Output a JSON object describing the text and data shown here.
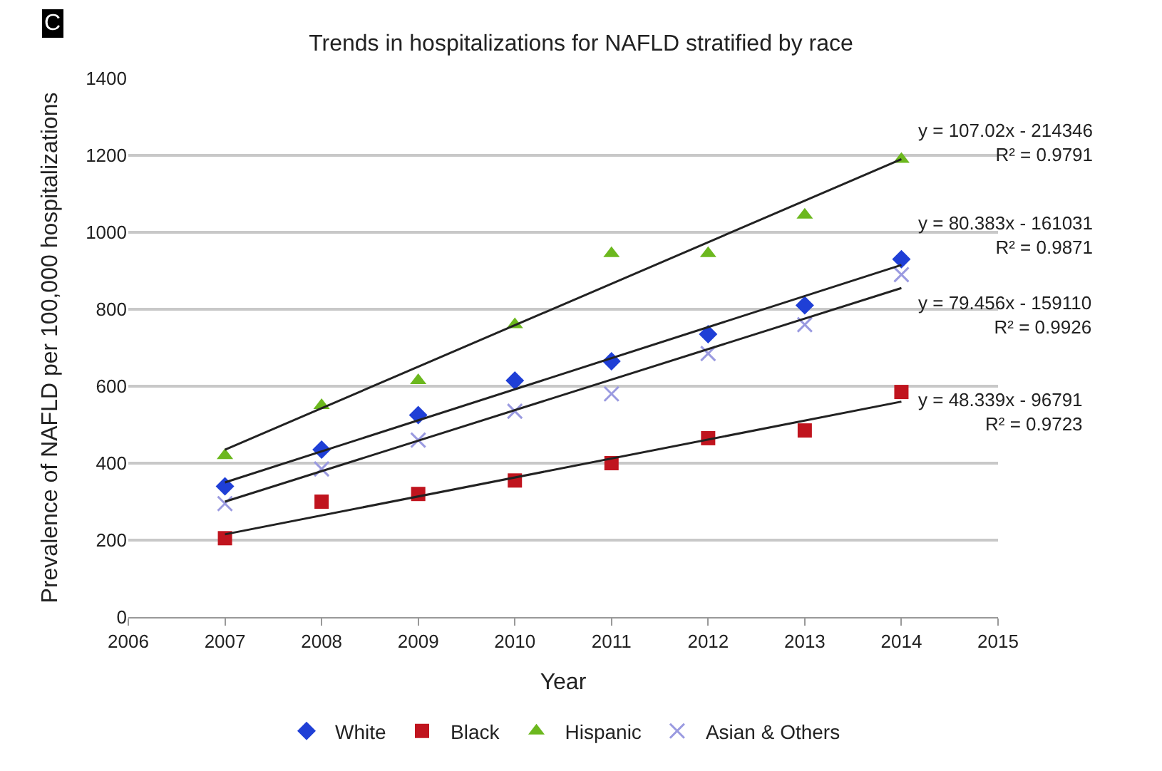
{
  "chart_data": {
    "type": "scatter",
    "title": "Trends in hospitalizations for NAFLD stratified by race",
    "xlabel": "Year",
    "ylabel": "Prevalence of NAFLD per 100,000 hospitalizations",
    "x": [
      2007,
      2008,
      2009,
      2010,
      2011,
      2012,
      2013,
      2014
    ],
    "series": [
      {
        "name": "White",
        "color": "#1f3fd6",
        "marker": "diamond",
        "values": [
          340,
          435,
          525,
          615,
          665,
          735,
          810,
          930
        ]
      },
      {
        "name": "Black",
        "color": "#c0141e",
        "marker": "square",
        "values": [
          205,
          300,
          320,
          355,
          400,
          465,
          485,
          585
        ]
      },
      {
        "name": "Hispanic",
        "color": "#6cb81e",
        "marker": "triangle",
        "values": [
          420,
          550,
          615,
          760,
          945,
          945,
          1045,
          1190
        ]
      },
      {
        "name": "Asian & Others",
        "color": "#9a9ae0",
        "marker": "cross",
        "values": [
          295,
          385,
          460,
          535,
          580,
          685,
          760,
          890
        ]
      },
      {
        "type": "line",
        "color": "#222222",
        "values": [
          435,
          null,
          null,
          null,
          null,
          null,
          null,
          1190
        ]
      },
      {
        "type": "line",
        "color": "#222222",
        "values": [
          350,
          null,
          null,
          null,
          null,
          null,
          null,
          915
        ]
      },
      {
        "type": "line",
        "color": "#222222",
        "values": [
          300,
          null,
          null,
          null,
          null,
          null,
          null,
          855
        ]
      },
      {
        "type": "line",
        "color": "#222222",
        "values": [
          215,
          null,
          null,
          null,
          null,
          null,
          null,
          560
        ]
      }
    ],
    "annotations": [
      "C",
      "y = 107.02x - 214346\nR² = 0.9791",
      "y = 80.383x - 161031\nR² = 0.9871",
      "y = 79.456x - 159110\nR² = 0.9926",
      "y = 48.339x - 96791\nR² = 0.9723"
    ],
    "xlim": [
      2006,
      2015
    ],
    "xticks": [
      2006,
      2007,
      2008,
      2009,
      2010,
      2011,
      2012,
      2013,
      2014,
      2015
    ],
    "ylim": [
      0,
      1400
    ],
    "yticks": [
      0,
      200,
      400,
      600,
      800,
      1000,
      1200,
      1400
    ],
    "grid": "y",
    "legend": "bottom"
  }
}
